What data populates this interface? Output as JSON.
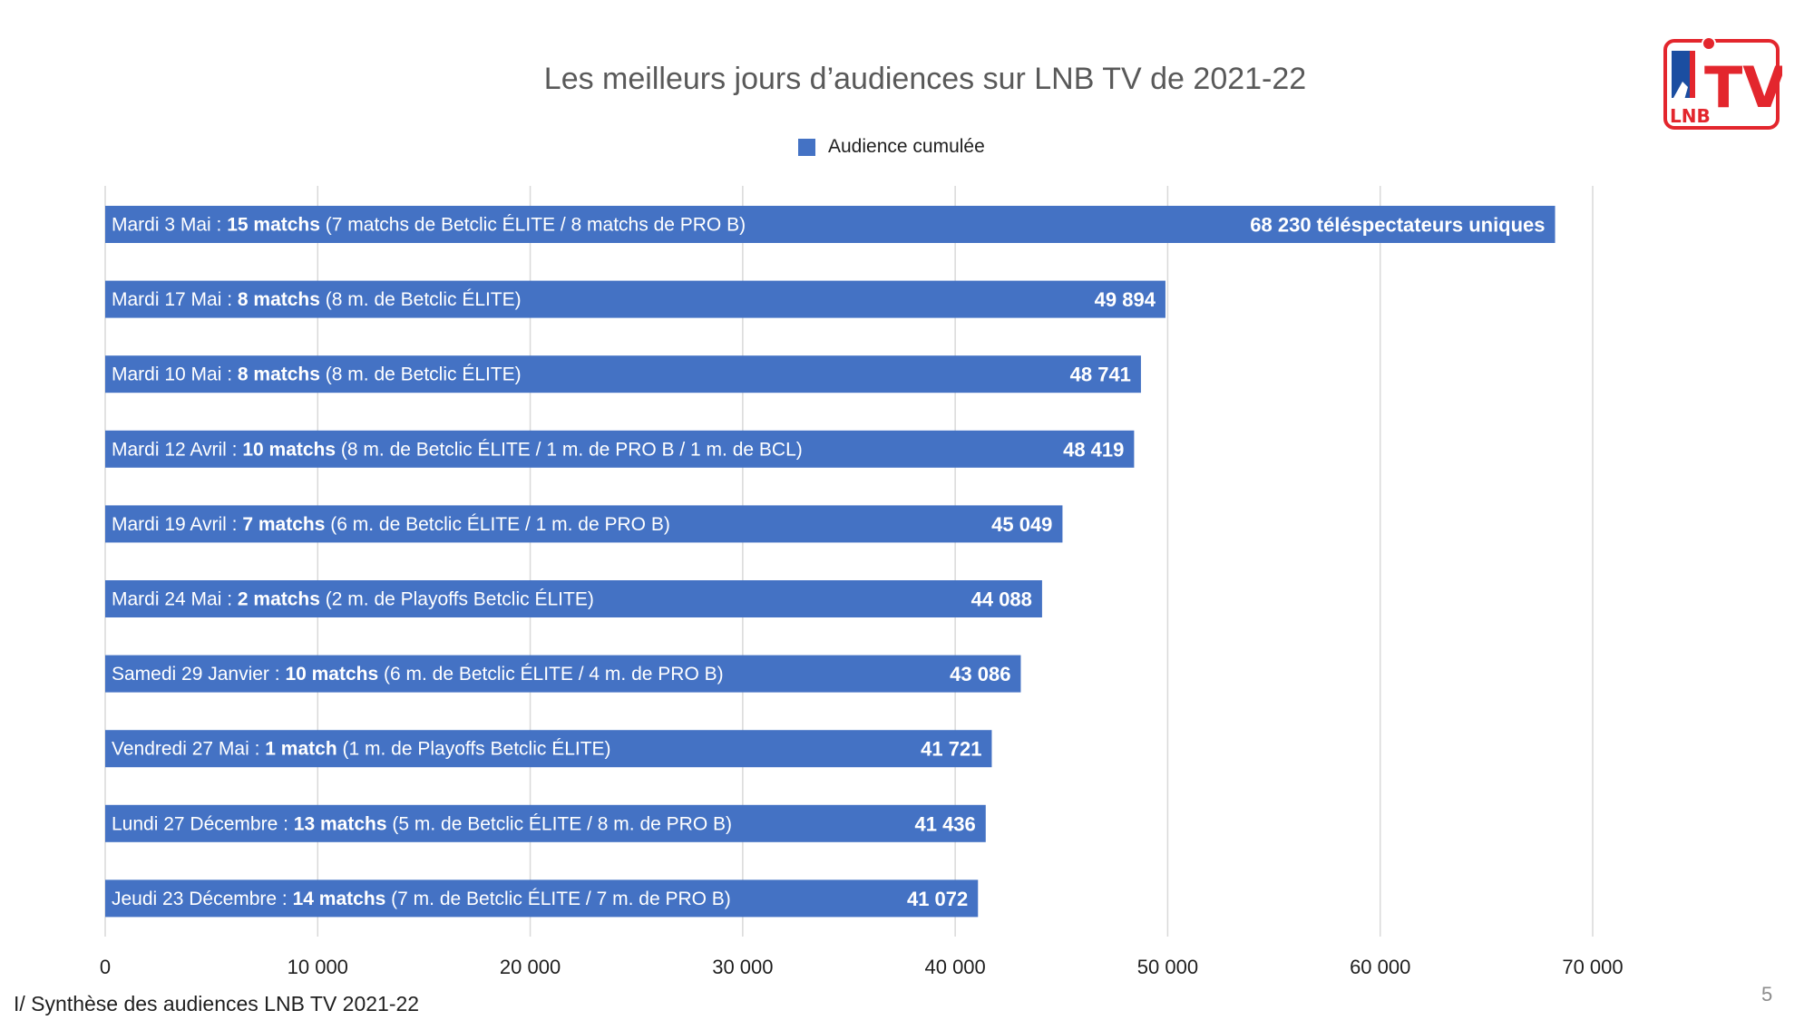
{
  "page": {
    "title": "Les meilleurs jours d’audiences sur LNB TV de 2021-22",
    "footer": "I/ Synthèse des audiences LNB TV 2021-22",
    "page_number": "5",
    "logo": {
      "text": "TV",
      "subtext": "LNB"
    }
  },
  "colors": {
    "bar": "#4472c4",
    "grid": "#d9d9d9",
    "logo_red": "#e3262d",
    "logo_blue": "#1b4ea1"
  },
  "chart_data": {
    "type": "bar",
    "orientation": "horizontal",
    "legend": {
      "position": "top",
      "entries": [
        "Audience cumulée"
      ]
    },
    "grid": true,
    "xlim": [
      0,
      70000
    ],
    "x_ticks": [
      0,
      10000,
      20000,
      30000,
      40000,
      50000,
      60000,
      70000
    ],
    "x_tick_labels": [
      "0",
      "10 000",
      "20 000",
      "30 000",
      "40 000",
      "50 000",
      "60 000",
      "70 000"
    ],
    "series": [
      {
        "name": "Audience cumulée",
        "values": [
          68230,
          49894,
          48741,
          48419,
          45049,
          44088,
          43086,
          41721,
          41436,
          41072
        ]
      }
    ],
    "categories": [
      {
        "day": "Mardi 3 Mai  : ",
        "matches": "15 matchs",
        "detail": " (7 matchs de Betclic ÉLITE / 8 matchs de PRO B)"
      },
      {
        "day": "Mardi 17 Mai : ",
        "matches": "8 matchs",
        "detail": " (8 m. de Betclic ÉLITE)"
      },
      {
        "day": "Mardi 10 Mai : ",
        "matches": "8 matchs",
        "detail": " (8 m. de Betclic ÉLITE)"
      },
      {
        "day": "Mardi 12 Avril : ",
        "matches": "10 matchs",
        "detail": " (8 m. de Betclic ÉLITE / 1 m. de PRO B / 1 m. de BCL)"
      },
      {
        "day": "Mardi 19 Avril : ",
        "matches": "7 matchs",
        "detail": " (6 m. de Betclic ÉLITE / 1 m. de PRO B)"
      },
      {
        "day": "Mardi 24 Mai : ",
        "matches": "2 matchs",
        "detail": " (2 m. de Playoffs Betclic ÉLITE)"
      },
      {
        "day": "Samedi 29 Janvier : ",
        "matches": "10 matchs",
        "detail": " (6 m. de Betclic ÉLITE / 4 m. de PRO B)"
      },
      {
        "day": "Vendredi 27 Mai : ",
        "matches": "1 match",
        "detail": " (1 m. de Playoffs Betclic ÉLITE)"
      },
      {
        "day": "Lundi 27 Décembre : ",
        "matches": "13 matchs",
        "detail": " (5 m. de Betclic ÉLITE / 8 m. de PRO B)"
      },
      {
        "day": "Jeudi 23 Décembre : ",
        "matches": "14 matchs",
        "detail": " (7 m. de Betclic ÉLITE / 7 m. de PRO B)"
      }
    ],
    "value_labels": [
      "68 230  téléspectateurs uniques",
      "49 894",
      "48 741",
      "48 419",
      "45 049",
      "44 088",
      "43 086",
      "41 721",
      "41 436",
      "41 072"
    ]
  }
}
